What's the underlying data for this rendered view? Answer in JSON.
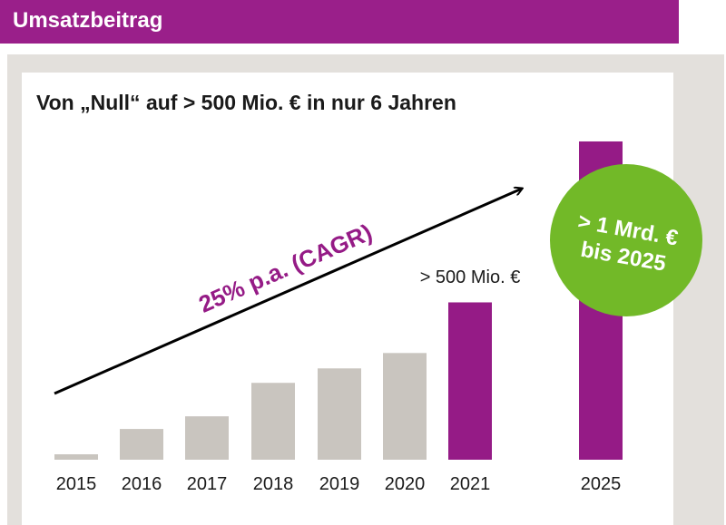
{
  "header": {
    "title": "Umsatzbeitrag"
  },
  "chart_data": {
    "type": "bar",
    "title": "Von „Null“ auf > 500 Mio. € in nur 6 Jahren",
    "xlabel": "",
    "ylabel": "",
    "categories": [
      "2015",
      "2016",
      "2017",
      "2018",
      "2019",
      "2020",
      "2021",
      "2025"
    ],
    "values": [
      6,
      34,
      48,
      85,
      101,
      118,
      174,
      352
    ],
    "value_unit": "relative bar height (no y-axis printed)",
    "ylim": [
      0,
      360
    ],
    "grid": false,
    "bar_colors": [
      "#c9c5bf",
      "#c9c5bf",
      "#c9c5bf",
      "#c9c5bf",
      "#c9c5bf",
      "#c9c5bf",
      "#951b86",
      "#951b86"
    ],
    "annotations": {
      "bar_2021_label": "> 500 Mio. €",
      "trend_label": "25% p.a. (CAGR)",
      "badge_line1": "> 1 Mrd. €",
      "badge_line2": "bis 2025"
    }
  },
  "colors": {
    "header_bg": "#9a1f8a",
    "highlight": "#951b86",
    "bar_gray": "#c9c5bf",
    "badge_green": "#72b928",
    "trend_text": "#951b86",
    "frame_bg": "#e3e0dc"
  }
}
